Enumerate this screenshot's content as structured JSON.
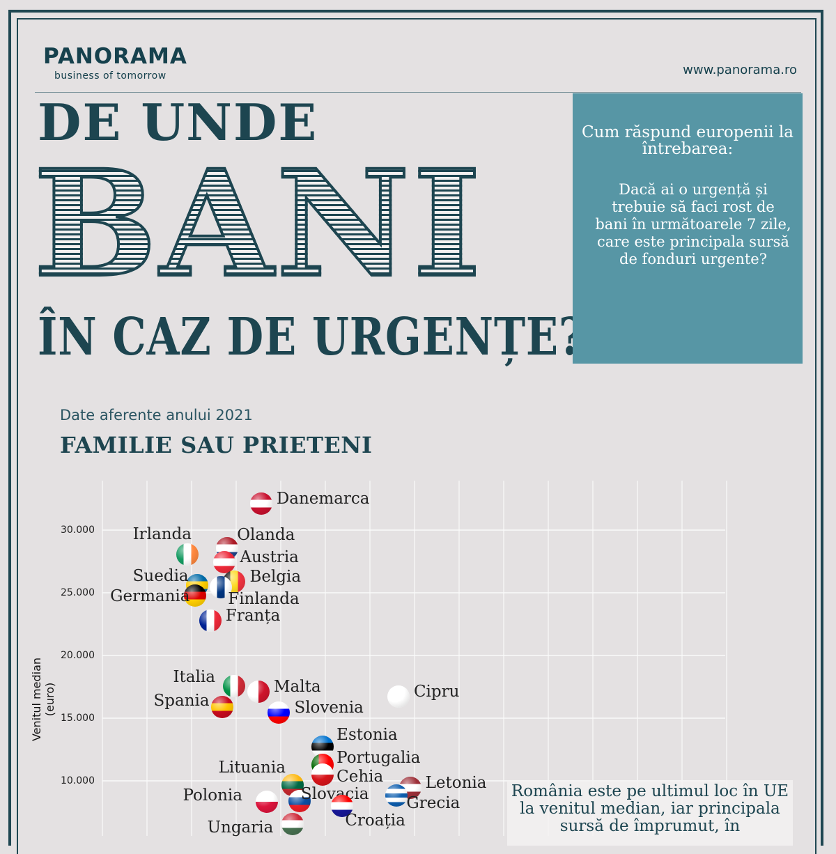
{
  "header": {
    "logo": "PANORAMA",
    "tagline": "business of tomorrow",
    "url": "www.panorama.ro"
  },
  "title": {
    "line1": "DE UNDE",
    "line2": "BANI",
    "line3": "ÎN CAZ DE URGENȚE?"
  },
  "question_box": {
    "heading": "Cum răspund europenii la întrebarea:",
    "question": "Dacă ai o urgență și trebuie să faci rost de bani în următoarele 7 zile, care este principala sursă de fonduri urgente?",
    "color": "#5796a5"
  },
  "subtitle": "Date aferente anului 2021",
  "category": "FAMILIE SAU PRIETENI",
  "note": "România este pe ultimul loc în UE la venitul median, iar principala sursă de împrumut, în",
  "chart_data": {
    "type": "scatter",
    "ylabel": "Venitul median (euro)",
    "xlabel": "",
    "ylim": [
      5000,
      33500
    ],
    "xlim": [
      0,
      70
    ],
    "yticks": [
      "10.000",
      "15.000",
      "20.000",
      "25.000",
      "30.000"
    ],
    "ytick_values": [
      10000,
      15000,
      20000,
      25000,
      30000
    ],
    "grid": true,
    "points": [
      {
        "name": "Danemarca",
        "x": 17.8,
        "y": 32100,
        "flag": [
          "#c8102e",
          "#ffffff",
          "#c8102e"
        ],
        "dir": "h"
      },
      {
        "name": "Irlanda",
        "x": 9.5,
        "y": 28050,
        "flag": [
          "#169b62",
          "#ffffff",
          "#ff883e"
        ],
        "dir": "v"
      },
      {
        "name": "Olanda",
        "x": 14.0,
        "y": 28550,
        "flag": [
          "#ae1c28",
          "#ffffff",
          "#21468b"
        ],
        "dir": "h"
      },
      {
        "name": "Austria",
        "x": 13.7,
        "y": 27450,
        "flag": [
          "#ed2939",
          "#ffffff",
          "#ed2939"
        ],
        "dir": "h"
      },
      {
        "name": "Belgia",
        "x": 14.8,
        "y": 25900,
        "flag": [
          "#000000",
          "#fdda24",
          "#ef3340"
        ],
        "dir": "v"
      },
      {
        "name": "Suedia",
        "x": 10.6,
        "y": 25600,
        "flag": [
          "#006aa7",
          "#fecc00",
          "#006aa7"
        ],
        "dir": "h"
      },
      {
        "name": "Finlanda",
        "x": 13.3,
        "y": 25450,
        "flag": [
          "#ffffff",
          "#003580",
          "#ffffff"
        ],
        "dir": "v"
      },
      {
        "name": "Germania",
        "x": 10.4,
        "y": 24800,
        "flag": [
          "#000000",
          "#dd0000",
          "#ffce00"
        ],
        "dir": "h"
      },
      {
        "name": "Franța",
        "x": 12.1,
        "y": 22800,
        "flag": [
          "#002395",
          "#ffffff",
          "#ed2939"
        ],
        "dir": "v"
      },
      {
        "name": "Italia",
        "x": 14.8,
        "y": 17550,
        "flag": [
          "#009246",
          "#ffffff",
          "#ce2b37"
        ],
        "dir": "v"
      },
      {
        "name": "Malta",
        "x": 17.5,
        "y": 17100,
        "flag": [
          "#ffffff",
          "#cf142b"
        ],
        "dir": "v"
      },
      {
        "name": "Spania",
        "x": 13.4,
        "y": 15900,
        "flag": [
          "#c60b1e",
          "#ffc400",
          "#c60b1e"
        ],
        "dir": "h"
      },
      {
        "name": "Slovenia",
        "x": 19.8,
        "y": 15450,
        "flag": [
          "#ffffff",
          "#0000ff",
          "#ff0000"
        ],
        "dir": "h"
      },
      {
        "name": "Cipru",
        "x": 33.2,
        "y": 16700,
        "flag": [
          "#ffffff",
          "#ffffff",
          "#ffffff"
        ],
        "dir": "h"
      },
      {
        "name": "Estonia",
        "x": 24.7,
        "y": 12700,
        "flag": [
          "#0072ce",
          "#000000",
          "#ffffff"
        ],
        "dir": "h"
      },
      {
        "name": "Portugalia",
        "x": 24.7,
        "y": 11300,
        "flag": [
          "#006600",
          "#ff0000",
          "#ff0000"
        ],
        "dir": "v"
      },
      {
        "name": "Cehia",
        "x": 24.7,
        "y": 10500,
        "flag": [
          "#ffffff",
          "#d7141a"
        ],
        "dir": "h"
      },
      {
        "name": "Lituania",
        "x": 21.3,
        "y": 9650,
        "flag": [
          "#fdb913",
          "#006a44",
          "#c1272d"
        ],
        "dir": "h"
      },
      {
        "name": "Letonia",
        "x": 34.5,
        "y": 9450,
        "flag": [
          "#9e3039",
          "#ffffff",
          "#9e3039"
        ],
        "dir": "h"
      },
      {
        "name": "Grecia",
        "x": 33.0,
        "y": 8850,
        "flag": [
          "#0d5eaf",
          "#ffffff",
          "#0d5eaf",
          "#ffffff",
          "#0d5eaf"
        ],
        "dir": "h"
      },
      {
        "name": "Slovacia",
        "x": 22.1,
        "y": 8400,
        "flag": [
          "#ffffff",
          "#0b4ea2",
          "#ee1c25"
        ],
        "dir": "h"
      },
      {
        "name": "Polonia",
        "x": 18.4,
        "y": 8350,
        "flag": [
          "#ffffff",
          "#dc143c"
        ],
        "dir": "h"
      },
      {
        "name": "Croația",
        "x": 26.9,
        "y": 8000,
        "flag": [
          "#ff0000",
          "#ffffff",
          "#171796"
        ],
        "dir": "h"
      },
      {
        "name": "Ungaria",
        "x": 21.3,
        "y": 6550,
        "flag": [
          "#ce2939",
          "#ffffff",
          "#477050"
        ],
        "dir": "h"
      }
    ]
  }
}
